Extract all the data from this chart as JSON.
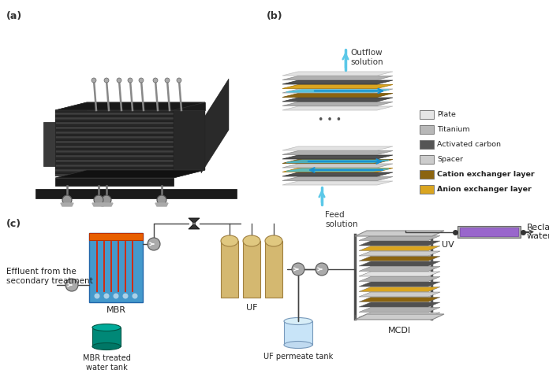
{
  "fig_width": 6.96,
  "fig_height": 4.7,
  "dpi": 100,
  "bg_color": "#ffffff",
  "panel_a_label": "(a)",
  "panel_b_label": "(b)",
  "panel_c_label": "(c)",
  "outflow_text": "Outflow\nsolution",
  "feed_text": "Feed\nsolution",
  "legend_items": [
    {
      "label": "Plate",
      "color": "#e5e5e5"
    },
    {
      "label": "Titanium",
      "color": "#b8b8b8"
    },
    {
      "label": "Activated carbon",
      "color": "#555555"
    },
    {
      "label": "Spacer",
      "color": "#cccccc"
    },
    {
      "label": "Cation exchanger layer",
      "color": "#8B6410"
    },
    {
      "label": "Anion exchanger layer",
      "color": "#DAA520"
    }
  ],
  "mbr_label": "MBR",
  "mbr_treated_label": "MBR treated\nwater tank",
  "uf_label": "UF",
  "uf_permeate_label": "UF permeate tank",
  "mcdi_label": "MCDI",
  "uv_label": "UV",
  "reclaimed_label": "Reclaimed\nwater",
  "effluent_label": "Effluent from the\nsecondary treatment",
  "arrow_color": "#5bc8e8",
  "flow_line_color": "#444444",
  "plate_color": "#e2e2e2",
  "titanium_color": "#b0b0b0",
  "carbon_color": "#505050",
  "spacer_color": "#cccccc",
  "cation_color": "#8B6410",
  "anion_color": "#DAA520",
  "mbr_water_color": "#3399cc",
  "mbr_top_color": "#e86000",
  "mbr_membrane_color": "#dd3300",
  "uf_color": "#d4b870",
  "uf_permeate_color": "#c8e0f4",
  "purple_color": "#9966cc",
  "gray_uv_color": "#999999"
}
